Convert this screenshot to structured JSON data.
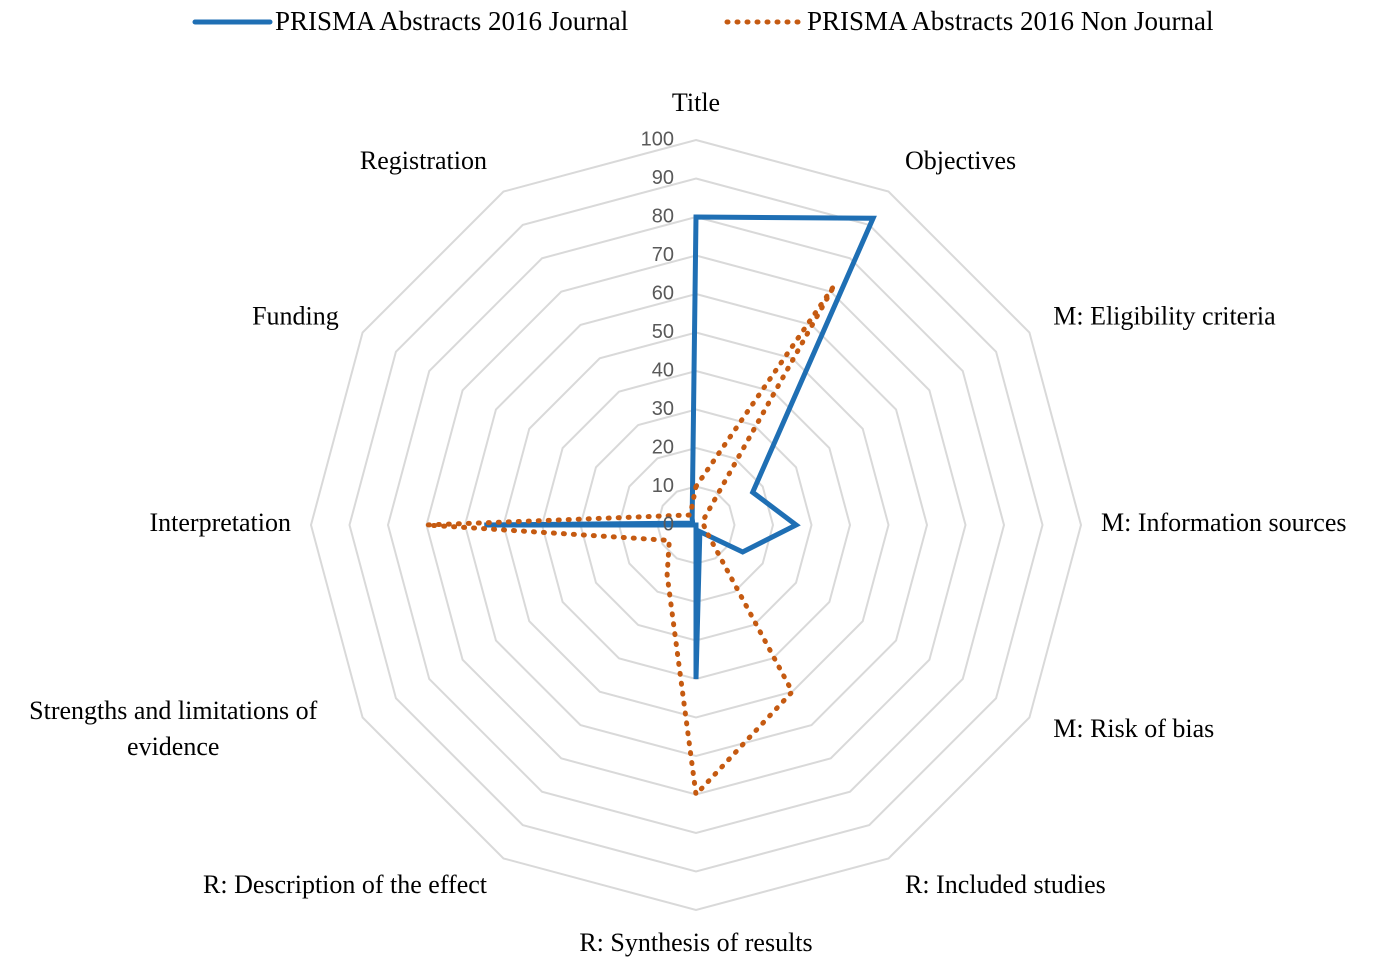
{
  "chart_data": {
    "type": "radar",
    "categories": [
      "Title",
      "Objectives",
      "M: Eligibility criteria",
      "M: Information sources",
      "M: Risk of bias",
      "R: Included studies",
      "R: Synthesis of results",
      "R: Description of the effect",
      "Strengths and limitations of evidence",
      "Interpretation",
      "Funding",
      "Registration"
    ],
    "series": [
      {
        "name": "PRISMA Abstracts 2016 Journal",
        "color": "#1f6fb4",
        "style": "solid",
        "values": [
          80,
          92,
          17,
          26,
          14,
          2,
          40,
          0,
          0,
          55,
          1,
          2
        ]
      },
      {
        "name": "PRISMA Abstracts 2016 Non Journal",
        "color": "#c55a11",
        "style": "dotted",
        "values": [
          10,
          72,
          2,
          2,
          3,
          50,
          70,
          15,
          8,
          70,
          5,
          3
        ]
      }
    ],
    "ylim": [
      0,
      100
    ],
    "yticks": [
      0,
      10,
      20,
      30,
      40,
      50,
      60,
      70,
      80,
      90,
      100
    ],
    "grid": true,
    "legend": "top"
  }
}
